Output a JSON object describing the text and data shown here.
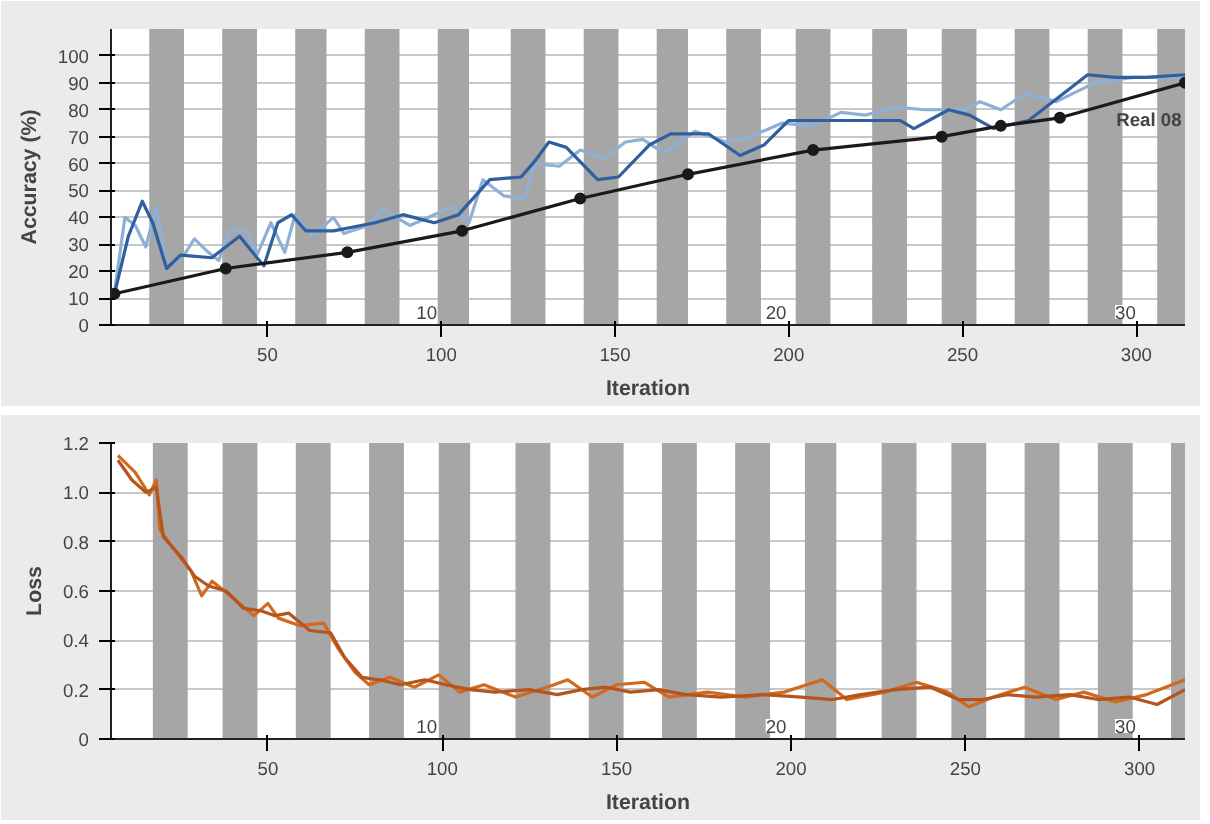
{
  "chart_data": [
    {
      "type": "line",
      "xlabel": "Iteration",
      "ylabel": "Accuracy (%)",
      "xlim": [
        5,
        314
      ],
      "ylim": [
        0,
        110
      ],
      "xticks": [
        50,
        100,
        150,
        200,
        250,
        300
      ],
      "yticks": [
        0,
        10,
        20,
        30,
        40,
        50,
        60,
        70,
        80,
        90,
        100
      ],
      "grid": "y",
      "bands": [
        {
          "axis": "x",
          "from": 16,
          "to": 26,
          "color": "#a6a6a6"
        },
        {
          "axis": "x",
          "from": 37,
          "to": 47,
          "color": "#a6a6a6"
        },
        {
          "axis": "x",
          "from": 58,
          "to": 67,
          "color": "#a6a6a6"
        },
        {
          "axis": "x",
          "from": 78,
          "to": 88,
          "color": "#a6a6a6"
        },
        {
          "axis": "x",
          "from": 99,
          "to": 108,
          "color": "#a6a6a6"
        },
        {
          "axis": "x",
          "from": 120,
          "to": 130,
          "color": "#a6a6a6"
        },
        {
          "axis": "x",
          "from": 141,
          "to": 151,
          "color": "#a6a6a6"
        },
        {
          "axis": "x",
          "from": 162,
          "to": 171,
          "color": "#a6a6a6"
        },
        {
          "axis": "x",
          "from": 182,
          "to": 192,
          "color": "#a6a6a6"
        },
        {
          "axis": "x",
          "from": 202,
          "to": 212,
          "color": "#a6a6a6"
        },
        {
          "axis": "x",
          "from": 224,
          "to": 234,
          "color": "#a6a6a6"
        },
        {
          "axis": "x",
          "from": 244,
          "to": 254,
          "color": "#a6a6a6"
        },
        {
          "axis": "x",
          "from": 265,
          "to": 275,
          "color": "#a6a6a6"
        },
        {
          "axis": "x",
          "from": 286,
          "to": 296,
          "color": "#a6a6a6"
        },
        {
          "axis": "x",
          "from": 306,
          "to": 314,
          "color": "#a6a6a6"
        }
      ],
      "annotations": [
        "10",
        "20",
        "30",
        {
          "text": "Real 08",
          "x": 313,
          "y": 80
        }
      ],
      "series": [
        {
          "color": "#8fb0d6",
          "marker": "none",
          "x": [
            6,
            9,
            12,
            15,
            18,
            21,
            26,
            29,
            33,
            36,
            39,
            44,
            47,
            51,
            55,
            58,
            63,
            69,
            72,
            79,
            83,
            91,
            98,
            103,
            108,
            112,
            118,
            124,
            127,
            134,
            140,
            147,
            153,
            158,
            164,
            173,
            182,
            189,
            198,
            207,
            215,
            222,
            231,
            239,
            251,
            255,
            261,
            268,
            277,
            288,
            299,
            314
          ],
          "values": [
            12,
            40,
            37,
            29,
            44,
            21,
            26,
            32,
            27,
            24,
            35,
            35,
            26,
            38,
            27,
            41,
            33,
            40,
            34,
            37,
            43,
            37,
            41,
            44,
            38,
            54,
            48,
            47,
            60,
            59,
            65,
            62,
            68,
            69,
            64,
            72,
            68,
            70,
            75,
            74,
            79,
            78,
            81,
            80,
            80,
            83,
            80,
            86,
            83,
            90,
            92,
            92
          ]
        },
        {
          "color": "#2f5f9e",
          "marker": "none",
          "x": [
            6,
            10,
            14,
            17,
            21,
            25,
            34,
            38,
            42,
            47,
            49,
            53,
            57,
            61,
            69,
            81,
            89,
            98,
            105,
            114,
            123,
            127,
            131,
            136,
            145,
            151,
            160,
            166,
            177,
            186,
            193,
            200,
            211,
            225,
            232,
            236,
            246,
            252,
            259,
            269,
            277,
            286,
            294,
            303,
            314
          ],
          "values": [
            11.6,
            33,
            46,
            38,
            21,
            26,
            25,
            29,
            33,
            25,
            22,
            38,
            41,
            35,
            35,
            38,
            41,
            38,
            41,
            54,
            55,
            61,
            68,
            66,
            54,
            55,
            67,
            71,
            71,
            63,
            67,
            76,
            76,
            76,
            76,
            73,
            80,
            78,
            73,
            76,
            84,
            93,
            92,
            92,
            93
          ]
        },
        {
          "color": "#1a1a1a",
          "marker": "circle",
          "x": [
            6,
            38,
            73,
            106,
            140,
            171,
            207,
            244,
            261,
            278,
            314
          ],
          "values": [
            11.6,
            21,
            27,
            35,
            47,
            56,
            65,
            70,
            74,
            77,
            90
          ]
        }
      ]
    },
    {
      "type": "line",
      "xlabel": "Iteration",
      "ylabel": "Loss",
      "xlim": [
        5,
        313
      ],
      "ylim": [
        0,
        1.2
      ],
      "xticks": [
        50,
        100,
        150,
        200,
        250,
        300
      ],
      "yticks": [
        0,
        {
          "value": 0.2,
          "label": "0.2"
        },
        {
          "value": 0.4,
          "label": "0.4"
        },
        {
          "value": 0.6,
          "label": "0.6"
        },
        {
          "value": 0.8,
          "label": "0.8"
        },
        {
          "value": 1.0,
          "label": "1.0"
        },
        {
          "value": 1.2,
          "label": "1.2"
        }
      ],
      "grid": "y",
      "bands": [
        {
          "axis": "x",
          "from": 17,
          "to": 27,
          "color": "#a6a6a6"
        },
        {
          "axis": "x",
          "from": 37,
          "to": 47,
          "color": "#a6a6a6"
        },
        {
          "axis": "x",
          "from": 58,
          "to": 68,
          "color": "#a6a6a6"
        },
        {
          "axis": "x",
          "from": 79,
          "to": 89,
          "color": "#a6a6a6"
        },
        {
          "axis": "x",
          "from": 99,
          "to": 108,
          "color": "#a6a6a6"
        },
        {
          "axis": "x",
          "from": 121,
          "to": 131,
          "color": "#a6a6a6"
        },
        {
          "axis": "x",
          "from": 142,
          "to": 152,
          "color": "#a6a6a6"
        },
        {
          "axis": "x",
          "from": 163,
          "to": 173,
          "color": "#a6a6a6"
        },
        {
          "axis": "x",
          "from": 184,
          "to": 194,
          "color": "#a6a6a6"
        },
        {
          "axis": "x",
          "from": 204,
          "to": 213,
          "color": "#a6a6a6"
        },
        {
          "axis": "x",
          "from": 226,
          "to": 236,
          "color": "#a6a6a6"
        },
        {
          "axis": "x",
          "from": 246,
          "to": 256,
          "color": "#a6a6a6"
        },
        {
          "axis": "x",
          "from": 267,
          "to": 277,
          "color": "#a6a6a6"
        },
        {
          "axis": "x",
          "from": 288,
          "to": 298,
          "color": "#a6a6a6"
        },
        {
          "axis": "x",
          "from": 309,
          "to": 313,
          "color": "#a6a6a6"
        }
      ],
      "annotations": [
        "10",
        "20",
        "30"
      ],
      "series": [
        {
          "color": "#d2691e",
          "marker": "none",
          "x": [
            7,
            12,
            16,
            18,
            19,
            23,
            28,
            31,
            34,
            41,
            46,
            50,
            53,
            59,
            66,
            70,
            75,
            79,
            85,
            92,
            99,
            105,
            112,
            121,
            130,
            136,
            143,
            150,
            158,
            165,
            176,
            187,
            198,
            209,
            216,
            227,
            236,
            245,
            251,
            258,
            267,
            276,
            284,
            293,
            302,
            313
          ],
          "values": [
            1.15,
            1.08,
            0.99,
            1.05,
            0.85,
            0.77,
            0.68,
            0.58,
            0.64,
            0.56,
            0.5,
            0.55,
            0.49,
            0.46,
            0.47,
            0.37,
            0.27,
            0.22,
            0.25,
            0.21,
            0.26,
            0.19,
            0.22,
            0.17,
            0.21,
            0.24,
            0.17,
            0.22,
            0.23,
            0.17,
            0.19,
            0.17,
            0.19,
            0.24,
            0.16,
            0.19,
            0.23,
            0.19,
            0.13,
            0.17,
            0.21,
            0.16,
            0.19,
            0.15,
            0.18,
            0.24
          ]
        },
        {
          "color": "#b5541c",
          "marker": "none",
          "x": [
            7,
            11,
            15,
            18,
            20,
            25,
            29,
            33,
            38,
            43,
            48,
            52,
            56,
            62,
            68,
            72,
            77,
            82,
            88,
            95,
            101,
            108,
            115,
            125,
            133,
            140,
            147,
            154,
            162,
            170,
            180,
            192,
            203,
            212,
            220,
            230,
            240,
            248,
            255,
            262,
            270,
            280,
            288,
            297,
            305,
            313
          ],
          "values": [
            1.13,
            1.05,
            1.0,
            1.02,
            0.82,
            0.74,
            0.66,
            0.62,
            0.6,
            0.53,
            0.52,
            0.5,
            0.51,
            0.44,
            0.43,
            0.33,
            0.25,
            0.24,
            0.22,
            0.24,
            0.22,
            0.2,
            0.19,
            0.2,
            0.18,
            0.2,
            0.21,
            0.19,
            0.2,
            0.18,
            0.17,
            0.18,
            0.17,
            0.16,
            0.18,
            0.2,
            0.21,
            0.16,
            0.16,
            0.18,
            0.17,
            0.18,
            0.16,
            0.17,
            0.14,
            0.2
          ]
        }
      ]
    }
  ]
}
